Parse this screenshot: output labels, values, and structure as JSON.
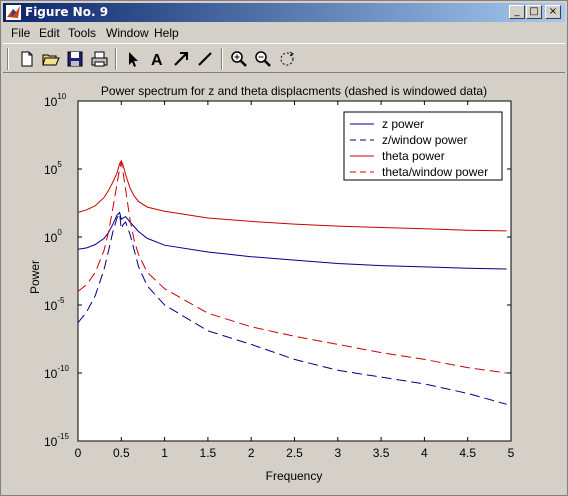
{
  "window": {
    "title": "Figure No. 9"
  },
  "menu": {
    "items": [
      "File",
      "Edit",
      "Tools",
      "Window",
      "Help"
    ]
  },
  "toolbar": {
    "icons": [
      "new-file-icon",
      "open-folder-icon",
      "save-icon",
      "print-icon",
      "select-arrow-icon",
      "insert-text-icon",
      "insert-arrow-icon",
      "insert-line-icon",
      "zoom-in-icon",
      "zoom-out-icon",
      "rotate-icon"
    ]
  },
  "chart_data": {
    "type": "line",
    "title": "Power spectrum for z and theta displacments (dashed is windowed data)",
    "xlabel": "Frequency",
    "ylabel": "Power",
    "xlim": [
      0,
      5
    ],
    "ylim_log10": [
      -15,
      10
    ],
    "yscale": "log",
    "x_ticks": [
      "0",
      "0.5",
      "1",
      "1.5",
      "2",
      "2.5",
      "3",
      "3.5",
      "4",
      "4.5",
      "5"
    ],
    "y_ticks": [
      {
        "base": "10",
        "exp": "10"
      },
      {
        "base": "10",
        "exp": "5"
      },
      {
        "base": "10",
        "exp": "0"
      },
      {
        "base": "10",
        "exp": "-5"
      },
      {
        "base": "10",
        "exp": "-10"
      },
      {
        "base": "10",
        "exp": "-15"
      }
    ],
    "legend_position": "top-right",
    "series": [
      {
        "name": "z power",
        "color": "#00008b",
        "dash": false,
        "x": [
          0,
          0.1,
          0.2,
          0.3,
          0.35,
          0.4,
          0.45,
          0.48,
          0.5,
          0.52,
          0.55,
          0.6,
          0.7,
          0.8,
          1,
          1.5,
          2,
          2.5,
          3,
          3.5,
          4,
          4.5,
          4.95
        ],
        "log10": [
          -0.9,
          -0.8,
          -0.55,
          -0.1,
          0.3,
          0.9,
          1.6,
          1.8,
          1.3,
          1.4,
          1.5,
          1.1,
          0.4,
          -0.1,
          -0.6,
          -1.1,
          -1.45,
          -1.7,
          -1.95,
          -2.1,
          -2.2,
          -2.3,
          -2.35
        ]
      },
      {
        "name": "z/window power",
        "color": "#00008b",
        "dash": true,
        "x": [
          0,
          0.1,
          0.2,
          0.3,
          0.35,
          0.4,
          0.45,
          0.48,
          0.5,
          0.52,
          0.55,
          0.6,
          0.7,
          0.8,
          1,
          1.5,
          2,
          2.5,
          3,
          3.5,
          4,
          4.5,
          4.95
        ],
        "log10": [
          -6.3,
          -5.5,
          -4.3,
          -2.4,
          -1.1,
          0.3,
          1.4,
          1.7,
          0.6,
          0.9,
          1.1,
          0.2,
          -2.2,
          -3.6,
          -5.0,
          -6.9,
          -7.9,
          -9.0,
          -9.8,
          -10.3,
          -10.8,
          -11.5,
          -12.3
        ]
      },
      {
        "name": "theta power",
        "color": "#cc0000",
        "dash": false,
        "x": [
          0,
          0.1,
          0.2,
          0.3,
          0.35,
          0.4,
          0.45,
          0.48,
          0.5,
          0.52,
          0.55,
          0.6,
          0.65,
          0.7,
          0.8,
          1,
          1.5,
          2,
          2.5,
          3,
          3.5,
          4,
          4.5,
          4.95
        ],
        "log10": [
          1.8,
          2.0,
          2.3,
          2.9,
          3.4,
          4.0,
          4.7,
          5.4,
          5.6,
          5.3,
          4.6,
          3.6,
          3.0,
          2.6,
          2.2,
          1.9,
          1.4,
          1.15,
          0.95,
          0.8,
          0.7,
          0.6,
          0.5,
          0.45
        ]
      },
      {
        "name": "theta/window power",
        "color": "#cc0000",
        "dash": true,
        "x": [
          0,
          0.1,
          0.2,
          0.3,
          0.35,
          0.4,
          0.45,
          0.48,
          0.5,
          0.52,
          0.55,
          0.6,
          0.65,
          0.7,
          0.8,
          1,
          1.5,
          2,
          2.5,
          3,
          3.5,
          4,
          4.5,
          4.95
        ],
        "log10": [
          -4.0,
          -3.5,
          -2.6,
          -1.0,
          0.3,
          2.0,
          3.9,
          5.0,
          5.5,
          4.8,
          3.5,
          1.3,
          -0.3,
          -1.3,
          -2.6,
          -3.8,
          -5.6,
          -6.6,
          -7.3,
          -7.9,
          -8.5,
          -9.0,
          -9.6,
          -10.0
        ]
      }
    ]
  }
}
